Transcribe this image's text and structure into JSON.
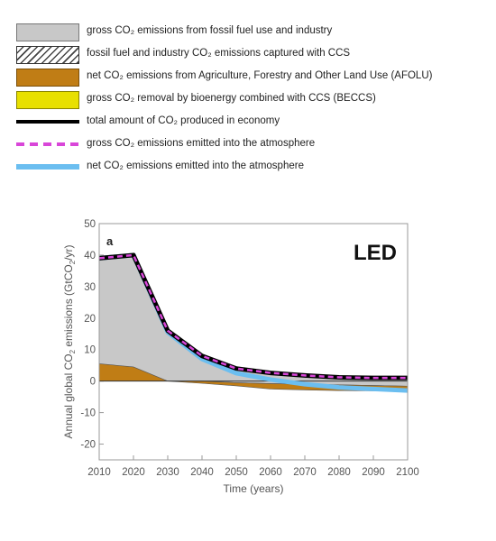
{
  "chart_data": {
    "type": "area",
    "panel_label": "a",
    "scenario_label": "LED",
    "xlabel": "Time (years)",
    "ylabel_parts": [
      "Annual global CO",
      "2",
      " emissions (GtCO",
      "2",
      "/yr)"
    ],
    "xlim": [
      2010,
      2100
    ],
    "ylim": [
      -25,
      50
    ],
    "x_ticks": [
      2010,
      2020,
      2030,
      2040,
      2050,
      2060,
      2070,
      2080,
      2090,
      2100
    ],
    "y_ticks": [
      -20,
      -10,
      0,
      10,
      20,
      30,
      40,
      50
    ],
    "x": [
      2010,
      2020,
      2030,
      2040,
      2050,
      2060,
      2070,
      2080,
      2090,
      2100
    ],
    "series": [
      {
        "name": "gross CO₂ emissions from fossil fuel use and industry",
        "color": "#c8c8c8",
        "lower": [
          0,
          0,
          0,
          0,
          -0.5,
          -0.8,
          -1.0,
          -1.2,
          -1.4,
          -1.6
        ],
        "upper": [
          39,
          40,
          16,
          8,
          4,
          2.6,
          1.8,
          1.2,
          1.0,
          1.0
        ]
      },
      {
        "name": "fossil fuel and industry CO₂ emissions captured with CCS",
        "color": "#444444",
        "values": [
          0,
          0,
          0,
          0,
          0,
          0,
          0,
          0,
          0,
          0
        ]
      },
      {
        "name": "net CO₂ emissions from Agriculture, Forestry and Other Land Use (AFOLU)",
        "color": "#c07d15",
        "lower": [
          0,
          0,
          0,
          -0.7,
          -1.5,
          -2.5,
          -2.8,
          -3.0,
          -3.1,
          -3.2
        ],
        "upper": [
          5.5,
          4.5,
          0,
          0,
          -0.5,
          -0.8,
          -1.0,
          -1.2,
          -1.4,
          -1.6
        ]
      },
      {
        "name": "gross CO₂ removal by bioenergy combined with CCS (BECCS)",
        "color": "#e8e000",
        "values": [
          0,
          0,
          0,
          0,
          0,
          0,
          0,
          0,
          0,
          0
        ]
      },
      {
        "name": "total amount of CO₂ produced in economy",
        "color": "#000000",
        "values": [
          39,
          40,
          16,
          8,
          4,
          2.6,
          1.8,
          1.2,
          1.0,
          1.0
        ]
      },
      {
        "name": "gross CO₂ emissions emitted into the atmosphere",
        "color": "#d946d9",
        "values": [
          39,
          40,
          16,
          8,
          4,
          2.6,
          1.8,
          1.2,
          1.0,
          1.0
        ]
      },
      {
        "name": "net CO₂ emissions emitted into the atmosphere",
        "color": "#6bbef0",
        "values": [
          39,
          40,
          15.5,
          7,
          2.5,
          0.5,
          -1,
          -2,
          -2.5,
          -3
        ]
      }
    ]
  }
}
